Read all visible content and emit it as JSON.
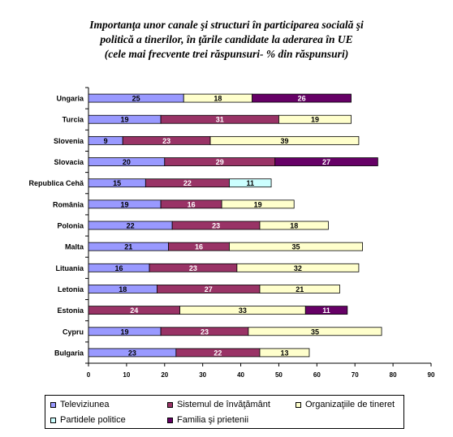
{
  "chart_data": {
    "type": "bar",
    "orientation": "horizontal",
    "stacked": true,
    "title_lines": [
      "Importanţa unor canale şi structuri în participarea socială şi",
      "politică a tinerilor, în ţările candidate la aderarea în UE",
      "(cele mai frecvente trei răspunsuri- % din răspunsuri)"
    ],
    "categories": [
      "Ungaria",
      "Turcia",
      "Slovenia",
      "Slovacia",
      "Republica Cehă",
      "România",
      "Polonia",
      "Malta",
      "Lituania",
      "Letonia",
      "Estonia",
      "Cypru",
      "Bulgaria"
    ],
    "xlim": [
      0,
      90
    ],
    "xticks": [
      0,
      10,
      20,
      30,
      40,
      50,
      60,
      70,
      80,
      90
    ],
    "grid": false,
    "legend_position": "bottom",
    "series": [
      {
        "name": "Televiziunea",
        "color": "#9999ff",
        "values": [
          25,
          19,
          9,
          20,
          15,
          19,
          22,
          21,
          16,
          18,
          null,
          19,
          23
        ]
      },
      {
        "name": "Sistemul de învăţământ",
        "color": "#993366",
        "values": [
          null,
          31,
          23,
          29,
          22,
          16,
          23,
          16,
          23,
          27,
          24,
          23,
          22
        ]
      },
      {
        "name": "Organizaţiile de tineret",
        "color": "#ffffcc",
        "values": [
          18,
          19,
          39,
          null,
          null,
          19,
          18,
          35,
          32,
          21,
          33,
          35,
          13
        ]
      },
      {
        "name": "Partidele politice",
        "color": "#ccffff",
        "values": [
          null,
          null,
          null,
          null,
          11,
          null,
          null,
          null,
          null,
          null,
          null,
          null,
          null
        ]
      },
      {
        "name": "Familia şi prietenii",
        "color": "#660066",
        "values": [
          26,
          null,
          null,
          27,
          null,
          null,
          null,
          null,
          null,
          null,
          11,
          null,
          null
        ]
      }
    ]
  }
}
